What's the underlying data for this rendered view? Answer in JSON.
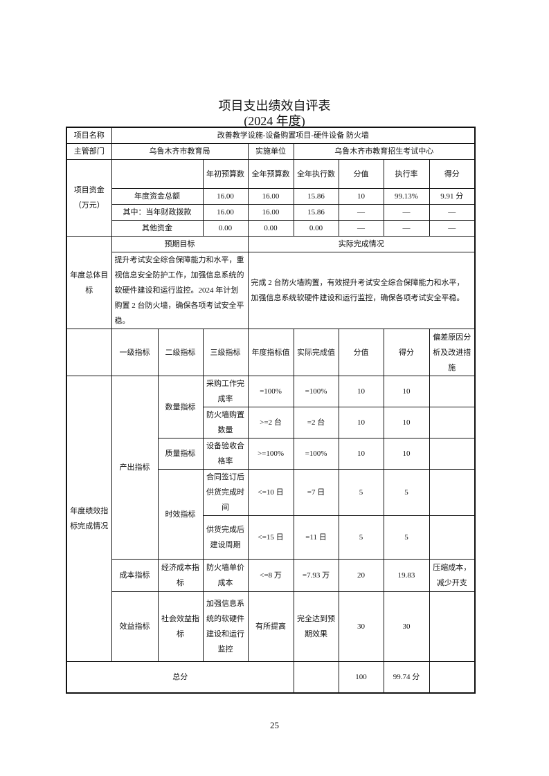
{
  "title": "项目支出绩效自评表",
  "subtitle": "(2024 年度)",
  "project": {
    "name_label": "项目名称",
    "name": "改善教学设施-设备购置项目-硬件设备 防火墙",
    "dept_label": "主管部门",
    "dept": "乌鲁木齐市教育局",
    "unit_label": "实施单位",
    "unit": "乌鲁木齐市教育招生考试中心"
  },
  "funds": {
    "label": "项目资金（万元）",
    "headers": [
      "年初预算数",
      "全年预算数",
      "全年执行数",
      "分值",
      "执行率",
      "得分"
    ],
    "rows": [
      {
        "name": "年度资金总额",
        "values": [
          "16.00",
          "16.00",
          "15.86",
          "10",
          "99.13%",
          "9.91 分"
        ]
      },
      {
        "name": "其中：当年财政拨款",
        "values": [
          "16.00",
          "16.00",
          "15.86",
          "—",
          "—",
          "—"
        ]
      },
      {
        "name": "其他资金",
        "values": [
          "0.00",
          "0.00",
          "0.00",
          "—",
          "—",
          "—"
        ]
      }
    ]
  },
  "goals": {
    "label": "年度总体目标",
    "expected_label": "预期目标",
    "actual_label": "实际完成情况",
    "expected": "提升考试安全综合保障能力和水平，重视信息安全防护工作，加强信息系统的软硬件建设和运行监控。2024 年计划购置 2 台防火墙，确保各项考试安全平稳。",
    "actual": "完成 2 台防火墙购置，有效提升考试安全综合保障能力和水平，加强信息系统软硬件建设和运行监控，确保各项考试安全平稳。"
  },
  "indicators": {
    "section_label": "年度绩效指标完成情况",
    "headers": [
      "一级指标",
      "二级指标",
      "三级指标",
      "年度指标值",
      "实际完成值",
      "分值",
      "得分",
      "偏差原因分析及改进措施"
    ],
    "level1": [
      "产出指标",
      "成本指标",
      "效益指标"
    ],
    "level2": [
      "数量指标",
      "质量指标",
      "时效指标",
      "经济成本指标",
      "社会效益指标"
    ],
    "rows": [
      {
        "level3": "采购工作完成率",
        "target": "=100%",
        "actual": "=100%",
        "weight": "10",
        "score": "10",
        "note": ""
      },
      {
        "level3": "防火墙购置数量",
        "target": ">=2 台",
        "actual": "=2 台",
        "weight": "10",
        "score": "10",
        "note": ""
      },
      {
        "level3": "设备验收合格率",
        "target": ">=100%",
        "actual": "=100%",
        "weight": "10",
        "score": "10",
        "note": ""
      },
      {
        "level3": "合同签订后供货完成时间",
        "target": "<=10 日",
        "actual": "=7 日",
        "weight": "5",
        "score": "5",
        "note": ""
      },
      {
        "level3": "供货完成后建设周期",
        "target": "<=15 日",
        "actual": "=11 日",
        "weight": "5",
        "score": "5",
        "note": ""
      },
      {
        "level3": "防火墙单价成本",
        "target": "<=8 万",
        "actual": "=7.93 万",
        "weight": "20",
        "score": "19.83",
        "note": "压缩成本，减少开支"
      },
      {
        "level3": "加强信息系统的软硬件建设和运行监控",
        "target": "有所提高",
        "actual": "完全达到预期效果",
        "weight": "30",
        "score": "30",
        "note": ""
      }
    ],
    "total_label": "总分",
    "total_weight": "100",
    "total_score": "99.74 分"
  },
  "page_number": "25"
}
